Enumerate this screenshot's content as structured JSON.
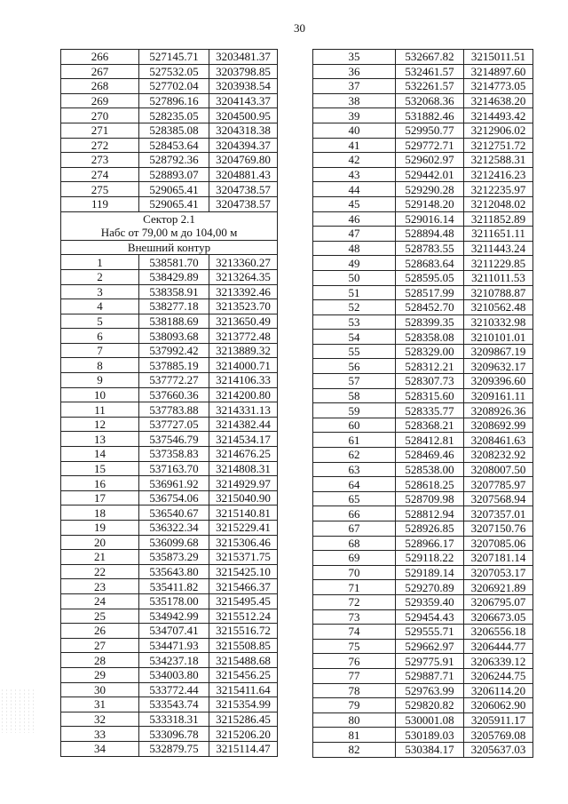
{
  "page_number": "30",
  "left_table": {
    "rows_top": [
      [
        "266",
        "527145.71",
        "3203481.37"
      ],
      [
        "267",
        "527532.05",
        "3203798.85"
      ],
      [
        "268",
        "527702.04",
        "3203938.54"
      ],
      [
        "269",
        "527896.16",
        "3204143.37"
      ],
      [
        "270",
        "528235.05",
        "3204500.95"
      ],
      [
        "271",
        "528385.08",
        "3204318.38"
      ],
      [
        "272",
        "528453.64",
        "3204394.37"
      ],
      [
        "273",
        "528792.36",
        "3204769.80"
      ],
      [
        "274",
        "528893.07",
        "3204881.43"
      ],
      [
        "275",
        "529065.41",
        "3204738.57"
      ],
      [
        "119",
        "529065.41",
        "3204738.57"
      ]
    ],
    "sector_title": "Сектор 2.1",
    "sector_height": "Набс от 79,00 м до 104,00 м",
    "contour_title": "Внешний контур",
    "rows_bottom": [
      [
        "1",
        "538581.70",
        "3213360.27"
      ],
      [
        "2",
        "538429.89",
        "3213264.35"
      ],
      [
        "3",
        "538358.91",
        "3213392.46"
      ],
      [
        "4",
        "538277.18",
        "3213523.70"
      ],
      [
        "5",
        "538188.69",
        "3213650.49"
      ],
      [
        "6",
        "538093.68",
        "3213772.48"
      ],
      [
        "7",
        "537992.42",
        "3213889.32"
      ],
      [
        "8",
        "537885.19",
        "3214000.71"
      ],
      [
        "9",
        "537772.27",
        "3214106.33"
      ],
      [
        "10",
        "537660.36",
        "3214200.80"
      ],
      [
        "11",
        "537783.88",
        "3214331.13"
      ],
      [
        "12",
        "537727.05",
        "3214382.44"
      ],
      [
        "13",
        "537546.79",
        "3214534.17"
      ],
      [
        "14",
        "537358.83",
        "3214676.25"
      ],
      [
        "15",
        "537163.70",
        "3214808.31"
      ],
      [
        "16",
        "536961.92",
        "3214929.97"
      ],
      [
        "17",
        "536754.06",
        "3215040.90"
      ],
      [
        "18",
        "536540.67",
        "3215140.81"
      ],
      [
        "19",
        "536322.34",
        "3215229.41"
      ],
      [
        "20",
        "536099.68",
        "3215306.46"
      ],
      [
        "21",
        "535873.29",
        "3215371.75"
      ],
      [
        "22",
        "535643.80",
        "3215425.10"
      ],
      [
        "23",
        "535411.82",
        "3215466.37"
      ],
      [
        "24",
        "535178.00",
        "3215495.45"
      ],
      [
        "25",
        "534942.99",
        "3215512.24"
      ],
      [
        "26",
        "534707.41",
        "3215516.72"
      ],
      [
        "27",
        "534471.93",
        "3215508.85"
      ],
      [
        "28",
        "534237.18",
        "3215488.68"
      ],
      [
        "29",
        "534003.80",
        "3215456.25"
      ],
      [
        "30",
        "533772.44",
        "3215411.64"
      ],
      [
        "31",
        "533543.74",
        "3215354.99"
      ],
      [
        "32",
        "533318.31",
        "3215286.45"
      ],
      [
        "33",
        "533096.78",
        "3215206.20"
      ],
      [
        "34",
        "532879.75",
        "3215114.47"
      ]
    ]
  },
  "right_table": {
    "rows": [
      [
        "35",
        "532667.82",
        "3215011.51"
      ],
      [
        "36",
        "532461.57",
        "3214897.60"
      ],
      [
        "37",
        "532261.57",
        "3214773.05"
      ],
      [
        "38",
        "532068.36",
        "3214638.20"
      ],
      [
        "39",
        "531882.46",
        "3214493.42"
      ],
      [
        "40",
        "529950.77",
        "3212906.02"
      ],
      [
        "41",
        "529772.71",
        "3212751.72"
      ],
      [
        "42",
        "529602.97",
        "3212588.31"
      ],
      [
        "43",
        "529442.01",
        "3212416.23"
      ],
      [
        "44",
        "529290.28",
        "3212235.97"
      ],
      [
        "45",
        "529148.20",
        "3212048.02"
      ],
      [
        "46",
        "529016.14",
        "3211852.89"
      ],
      [
        "47",
        "528894.48",
        "3211651.11"
      ],
      [
        "48",
        "528783.55",
        "3211443.24"
      ],
      [
        "49",
        "528683.64",
        "3211229.85"
      ],
      [
        "50",
        "528595.05",
        "3211011.53"
      ],
      [
        "51",
        "528517.99",
        "3210788.87"
      ],
      [
        "52",
        "528452.70",
        "3210562.48"
      ],
      [
        "53",
        "528399.35",
        "3210332.98"
      ],
      [
        "54",
        "528358.08",
        "3210101.01"
      ],
      [
        "55",
        "528329.00",
        "3209867.19"
      ],
      [
        "56",
        "528312.21",
        "3209632.17"
      ],
      [
        "57",
        "528307.73",
        "3209396.60"
      ],
      [
        "58",
        "528315.60",
        "3209161.11"
      ],
      [
        "59",
        "528335.77",
        "3208926.36"
      ],
      [
        "60",
        "528368.21",
        "3208692.99"
      ],
      [
        "61",
        "528412.81",
        "3208461.63"
      ],
      [
        "62",
        "528469.46",
        "3208232.92"
      ],
      [
        "63",
        "528538.00",
        "3208007.50"
      ],
      [
        "64",
        "528618.25",
        "3207785.97"
      ],
      [
        "65",
        "528709.98",
        "3207568.94"
      ],
      [
        "66",
        "528812.94",
        "3207357.01"
      ],
      [
        "67",
        "528926.85",
        "3207150.76"
      ],
      [
        "68",
        "528966.17",
        "3207085.06"
      ],
      [
        "69",
        "529118.22",
        "3207181.14"
      ],
      [
        "70",
        "529189.14",
        "3207053.17"
      ],
      [
        "71",
        "529270.89",
        "3206921.89"
      ],
      [
        "72",
        "529359.40",
        "3206795.07"
      ],
      [
        "73",
        "529454.43",
        "3206673.05"
      ],
      [
        "74",
        "529555.71",
        "3206556.18"
      ],
      [
        "75",
        "529662.97",
        "3206444.77"
      ],
      [
        "76",
        "529775.91",
        "3206339.12"
      ],
      [
        "77",
        "529887.71",
        "3206244.75"
      ],
      [
        "78",
        "529763.99",
        "3206114.20"
      ],
      [
        "79",
        "529820.82",
        "3206062.90"
      ],
      [
        "80",
        "530001.08",
        "3205911.17"
      ],
      [
        "81",
        "530189.03",
        "3205769.08"
      ],
      [
        "82",
        "530384.17",
        "3205637.03"
      ]
    ]
  }
}
